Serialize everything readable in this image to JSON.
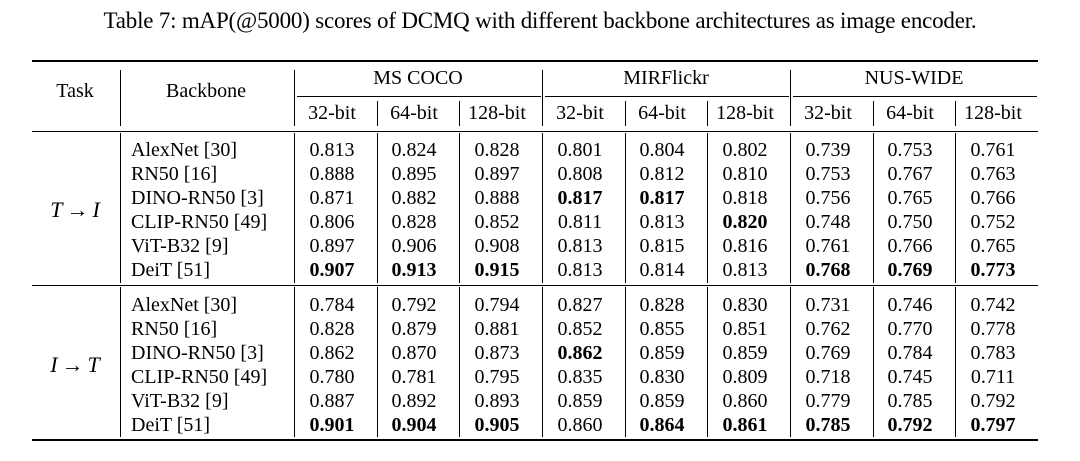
{
  "caption": "Table 7: mAP(@5000) scores of DCMQ with different backbone architectures as image encoder.",
  "header": {
    "task": "Task",
    "backbone": "Backbone",
    "datasets": [
      "MS COCO",
      "MIRFlickr",
      "NUS-WIDE"
    ],
    "bits": [
      "32-bit",
      "64-bit",
      "128-bit"
    ]
  },
  "groups": [
    {
      "task": {
        "a": "T",
        "arrow": "→",
        "b": "I"
      },
      "rows": [
        {
          "backbone": "AlexNet [30]",
          "values": [
            "0.813",
            "0.824",
            "0.828",
            "0.801",
            "0.804",
            "0.802",
            "0.739",
            "0.753",
            "0.761"
          ],
          "bold": []
        },
        {
          "backbone": "RN50 [16]",
          "values": [
            "0.888",
            "0.895",
            "0.897",
            "0.808",
            "0.812",
            "0.810",
            "0.753",
            "0.767",
            "0.763"
          ],
          "bold": []
        },
        {
          "backbone": "DINO-RN50 [3]",
          "values": [
            "0.871",
            "0.882",
            "0.888",
            "0.817",
            "0.817",
            "0.818",
            "0.756",
            "0.765",
            "0.766"
          ],
          "bold": [
            3,
            4
          ]
        },
        {
          "backbone": "CLIP-RN50 [49]",
          "values": [
            "0.806",
            "0.828",
            "0.852",
            "0.811",
            "0.813",
            "0.820",
            "0.748",
            "0.750",
            "0.752"
          ],
          "bold": [
            5
          ]
        },
        {
          "backbone": "ViT-B32 [9]",
          "values": [
            "0.897",
            "0.906",
            "0.908",
            "0.813",
            "0.815",
            "0.816",
            "0.761",
            "0.766",
            "0.765"
          ],
          "bold": []
        },
        {
          "backbone": "DeiT [51]",
          "values": [
            "0.907",
            "0.913",
            "0.915",
            "0.813",
            "0.814",
            "0.813",
            "0.768",
            "0.769",
            "0.773"
          ],
          "bold": [
            0,
            1,
            2,
            6,
            7,
            8
          ]
        }
      ]
    },
    {
      "task": {
        "a": "I",
        "arrow": "→",
        "b": "T"
      },
      "rows": [
        {
          "backbone": "AlexNet [30]",
          "values": [
            "0.784",
            "0.792",
            "0.794",
            "0.827",
            "0.828",
            "0.830",
            "0.731",
            "0.746",
            "0.742"
          ],
          "bold": []
        },
        {
          "backbone": "RN50 [16]",
          "values": [
            "0.828",
            "0.879",
            "0.881",
            "0.852",
            "0.855",
            "0.851",
            "0.762",
            "0.770",
            "0.778"
          ],
          "bold": []
        },
        {
          "backbone": "DINO-RN50 [3]",
          "values": [
            "0.862",
            "0.870",
            "0.873",
            "0.862",
            "0.859",
            "0.859",
            "0.769",
            "0.784",
            "0.783"
          ],
          "bold": [
            3
          ]
        },
        {
          "backbone": "CLIP-RN50 [49]",
          "values": [
            "0.780",
            "0.781",
            "0.795",
            "0.835",
            "0.830",
            "0.809",
            "0.718",
            "0.745",
            "0.711"
          ],
          "bold": []
        },
        {
          "backbone": "ViT-B32 [9]",
          "values": [
            "0.887",
            "0.892",
            "0.893",
            "0.859",
            "0.859",
            "0.860",
            "0.779",
            "0.785",
            "0.792"
          ],
          "bold": []
        },
        {
          "backbone": "DeiT [51]",
          "values": [
            "0.901",
            "0.904",
            "0.905",
            "0.860",
            "0.864",
            "0.861",
            "0.785",
            "0.792",
            "0.797"
          ],
          "bold": [
            0,
            1,
            2,
            4,
            5,
            6,
            7,
            8
          ]
        }
      ]
    }
  ]
}
